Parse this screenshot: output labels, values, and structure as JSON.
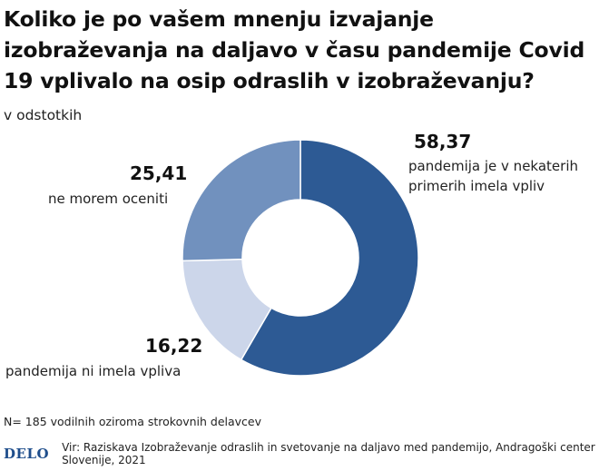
{
  "title": "Koliko je po vašem mnenju izvajanje izobraževanja na daljavo v času pandemije Covid 19 vplivalo na osip odraslih v izobraževanju?",
  "subtitle": "v odstotkih",
  "footnote": "N= 185 vodilnih oziroma strokovnih delavcev",
  "logo_text": "DELO",
  "source": "Vir: Raziskava Izobraževanje odraslih in svetovanje na daljavo med pandemijo, Andragoški center Slovenije, 2021",
  "chart_data": {
    "type": "pie",
    "donut": true,
    "slices": [
      {
        "label": "pandemija je v nekaterih primerih imela vpliv",
        "label_lines": [
          "pandemija je v nekaterih",
          "primerih imela vpliv"
        ],
        "value": 58.37,
        "value_text": "58,37",
        "color": "#2d5a94"
      },
      {
        "label": "pandemija ni imela vpliva",
        "label_lines": [
          "pandemija ni imela vpliva"
        ],
        "value": 16.22,
        "value_text": "16,22",
        "color": "#ccd6ea"
      },
      {
        "label": "ne morem oceniti",
        "label_lines": [
          "ne morem oceniti"
        ],
        "value": 25.41,
        "value_text": "25,41",
        "color": "#7191be"
      }
    ]
  }
}
